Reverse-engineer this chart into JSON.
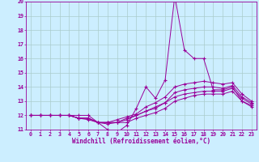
{
  "xlabel": "Windchill (Refroidissement éolien,°C)",
  "bg_color": "#cceeff",
  "grid_color": "#aacccc",
  "line_color": "#990099",
  "xlim": [
    -0.5,
    23.5
  ],
  "ylim": [
    11,
    20
  ],
  "yticks": [
    11,
    12,
    13,
    14,
    15,
    16,
    17,
    18,
    19,
    20
  ],
  "xticks": [
    0,
    1,
    2,
    3,
    4,
    5,
    6,
    7,
    8,
    9,
    10,
    11,
    12,
    13,
    14,
    15,
    16,
    17,
    18,
    19,
    20,
    21,
    22,
    23
  ],
  "series": [
    [
      12.0,
      12.0,
      12.0,
      12.0,
      12.0,
      12.0,
      12.0,
      11.5,
      11.0,
      10.8,
      11.3,
      12.5,
      14.0,
      13.2,
      14.5,
      20.4,
      16.6,
      16.0,
      16.0,
      13.8,
      13.8,
      14.0,
      13.0,
      12.7
    ],
    [
      12.0,
      12.0,
      12.0,
      12.0,
      12.0,
      11.8,
      11.7,
      11.5,
      11.4,
      11.5,
      11.5,
      11.8,
      12.0,
      12.2,
      12.5,
      13.0,
      13.2,
      13.4,
      13.5,
      13.5,
      13.5,
      13.7,
      13.0,
      12.6
    ],
    [
      12.0,
      12.0,
      12.0,
      12.0,
      12.0,
      11.8,
      11.8,
      11.5,
      11.5,
      11.5,
      11.8,
      12.0,
      12.3,
      12.5,
      12.9,
      13.3,
      13.5,
      13.6,
      13.7,
      13.7,
      13.7,
      13.9,
      13.2,
      12.8
    ],
    [
      12.0,
      12.0,
      12.0,
      12.0,
      12.0,
      11.8,
      11.8,
      11.5,
      11.5,
      11.7,
      11.9,
      12.1,
      12.6,
      12.9,
      13.3,
      14.0,
      14.2,
      14.3,
      14.4,
      14.3,
      14.2,
      14.3,
      13.5,
      13.0
    ],
    [
      12.0,
      12.0,
      12.0,
      12.0,
      12.0,
      11.8,
      11.8,
      11.5,
      11.5,
      11.5,
      11.7,
      12.0,
      12.3,
      12.6,
      12.9,
      13.6,
      13.8,
      13.9,
      14.0,
      14.0,
      13.9,
      14.1,
      13.3,
      12.9
    ]
  ]
}
